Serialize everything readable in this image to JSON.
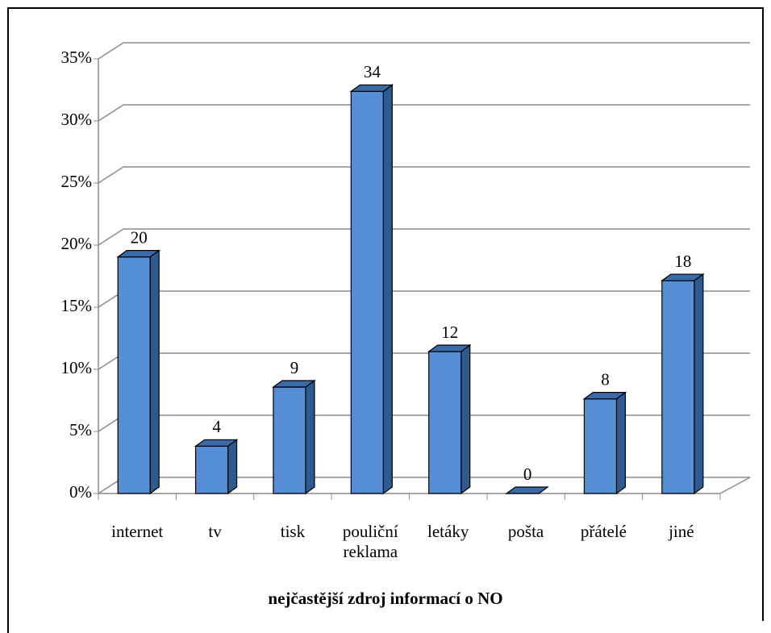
{
  "chart_data": {
    "type": "bar3d",
    "x_label": "nejčastější zdroj informací o NO",
    "categories": [
      "internet",
      "tv",
      "tisk",
      "pouliční reklama",
      "letáky",
      "pošta",
      "přátelé",
      "jiné"
    ],
    "values": [
      19.05,
      3.81,
      8.57,
      32.38,
      11.43,
      0,
      7.62,
      17.14
    ],
    "counts": [
      20,
      4,
      9,
      34,
      12,
      0,
      8,
      18
    ],
    "color": "#558ed5",
    "ylim": [
      0,
      35
    ],
    "yticks": [
      {
        "value": 0,
        "label": "0%"
      },
      {
        "value": 5,
        "label": "5%"
      },
      {
        "value": 10,
        "label": "10%"
      },
      {
        "value": 15,
        "label": "15%"
      },
      {
        "value": 20,
        "label": "20%"
      },
      {
        "value": 25,
        "label": "25%"
      },
      {
        "value": 30,
        "label": "30%"
      },
      {
        "value": 35,
        "label": "35%"
      }
    ],
    "grid": true
  }
}
